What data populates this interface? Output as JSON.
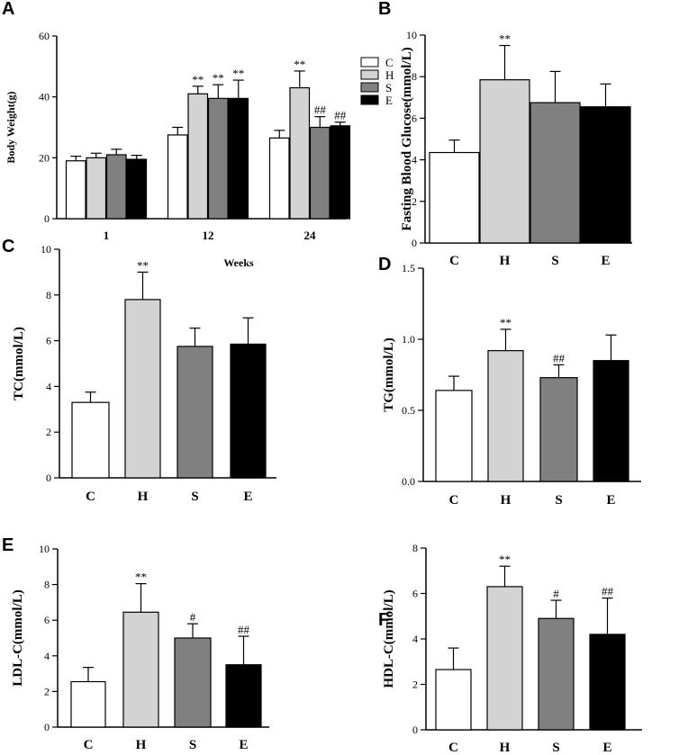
{
  "colors": {
    "C": "#ffffff",
    "H": "#d3d3d3",
    "S": "#808080",
    "E": "#000000",
    "axis": "#000000"
  },
  "chart_data": [
    {
      "id": "A",
      "panel": "A",
      "type": "bar",
      "ylabel": "Body Weight(g)",
      "xlabel": "Weeks",
      "ylim": [
        0,
        60
      ],
      "yticks": [
        "0",
        "20",
        "40",
        "60"
      ],
      "categories": [
        "1",
        "12",
        "24"
      ],
      "series": [
        {
          "name": "C",
          "values": [
            19,
            27.5,
            26.5
          ],
          "errors": [
            1.5,
            2.5,
            2.5
          ],
          "annotations": [
            "",
            "",
            ""
          ]
        },
        {
          "name": "H",
          "values": [
            20,
            41,
            43
          ],
          "errors": [
            1.5,
            2.5,
            5.5
          ],
          "annotations": [
            "",
            "**",
            "**"
          ]
        },
        {
          "name": "S",
          "values": [
            21,
            39.5,
            30
          ],
          "errors": [
            1.8,
            4.5,
            3.5
          ],
          "annotations": [
            "",
            "**",
            "##"
          ]
        },
        {
          "name": "E",
          "values": [
            19.5,
            39.5,
            30.5
          ],
          "errors": [
            1.3,
            6,
            1.2
          ],
          "annotations": [
            "",
            "**",
            "##"
          ]
        }
      ],
      "legend": [
        "C",
        "H",
        "S",
        "E"
      ]
    },
    {
      "id": "B",
      "panel": "B",
      "type": "bar",
      "ylabel": "Fasting Blood Glucose(mmol/L)",
      "ylim": [
        0,
        10
      ],
      "yticks": [
        "0",
        "2",
        "4",
        "6",
        "8",
        "10"
      ],
      "categories": [
        "C",
        "H",
        "S",
        "E"
      ],
      "values": [
        4.35,
        7.85,
        6.75,
        6.55
      ],
      "errors": [
        0.6,
        1.65,
        1.5,
        1.1
      ],
      "annotations": [
        "",
        "**",
        "",
        ""
      ]
    },
    {
      "id": "C",
      "panel": "C",
      "type": "bar",
      "ylabel": "TC(mmol/L)",
      "ylim": [
        0,
        10
      ],
      "yticks": [
        "0",
        "2",
        "4",
        "6",
        "8",
        "10"
      ],
      "categories": [
        "C",
        "H",
        "S",
        "E"
      ],
      "values": [
        3.3,
        7.8,
        5.75,
        5.85
      ],
      "errors": [
        0.45,
        1.2,
        0.8,
        1.15
      ],
      "annotations": [
        "",
        "**",
        "",
        ""
      ]
    },
    {
      "id": "D",
      "panel": "D",
      "type": "bar",
      "ylabel": "TG(mmol/L)",
      "ylim": [
        0,
        1.5
      ],
      "yticks": [
        "0.0",
        "0.5",
        "1.0",
        "1.5"
      ],
      "categories": [
        "C",
        "H",
        "S",
        "E"
      ],
      "values": [
        0.64,
        0.92,
        0.73,
        0.85
      ],
      "errors": [
        0.1,
        0.15,
        0.09,
        0.18
      ],
      "annotations": [
        "",
        "**",
        "##",
        ""
      ]
    },
    {
      "id": "E",
      "panel": "E",
      "type": "bar",
      "ylabel": "LDL-C(mmol/L)",
      "ylim": [
        0,
        10
      ],
      "yticks": [
        "0",
        "2",
        "4",
        "6",
        "8",
        "10"
      ],
      "categories": [
        "C",
        "H",
        "S",
        "E"
      ],
      "values": [
        2.55,
        6.45,
        5.0,
        3.5
      ],
      "errors": [
        0.8,
        1.6,
        0.8,
        1.6
      ],
      "annotations": [
        "",
        "**",
        "#",
        "##"
      ]
    },
    {
      "id": "F",
      "panel": "F",
      "type": "bar",
      "ylabel": "HDL-C(mmol/L)",
      "ylim": [
        0,
        8
      ],
      "yticks": [
        "0",
        "2",
        "4",
        "6",
        "8"
      ],
      "categories": [
        "C",
        "H",
        "S",
        "E"
      ],
      "values": [
        2.65,
        6.3,
        4.9,
        4.2
      ],
      "errors": [
        0.95,
        0.9,
        0.8,
        1.6
      ],
      "annotations": [
        "",
        "**",
        "#",
        "##"
      ]
    }
  ]
}
